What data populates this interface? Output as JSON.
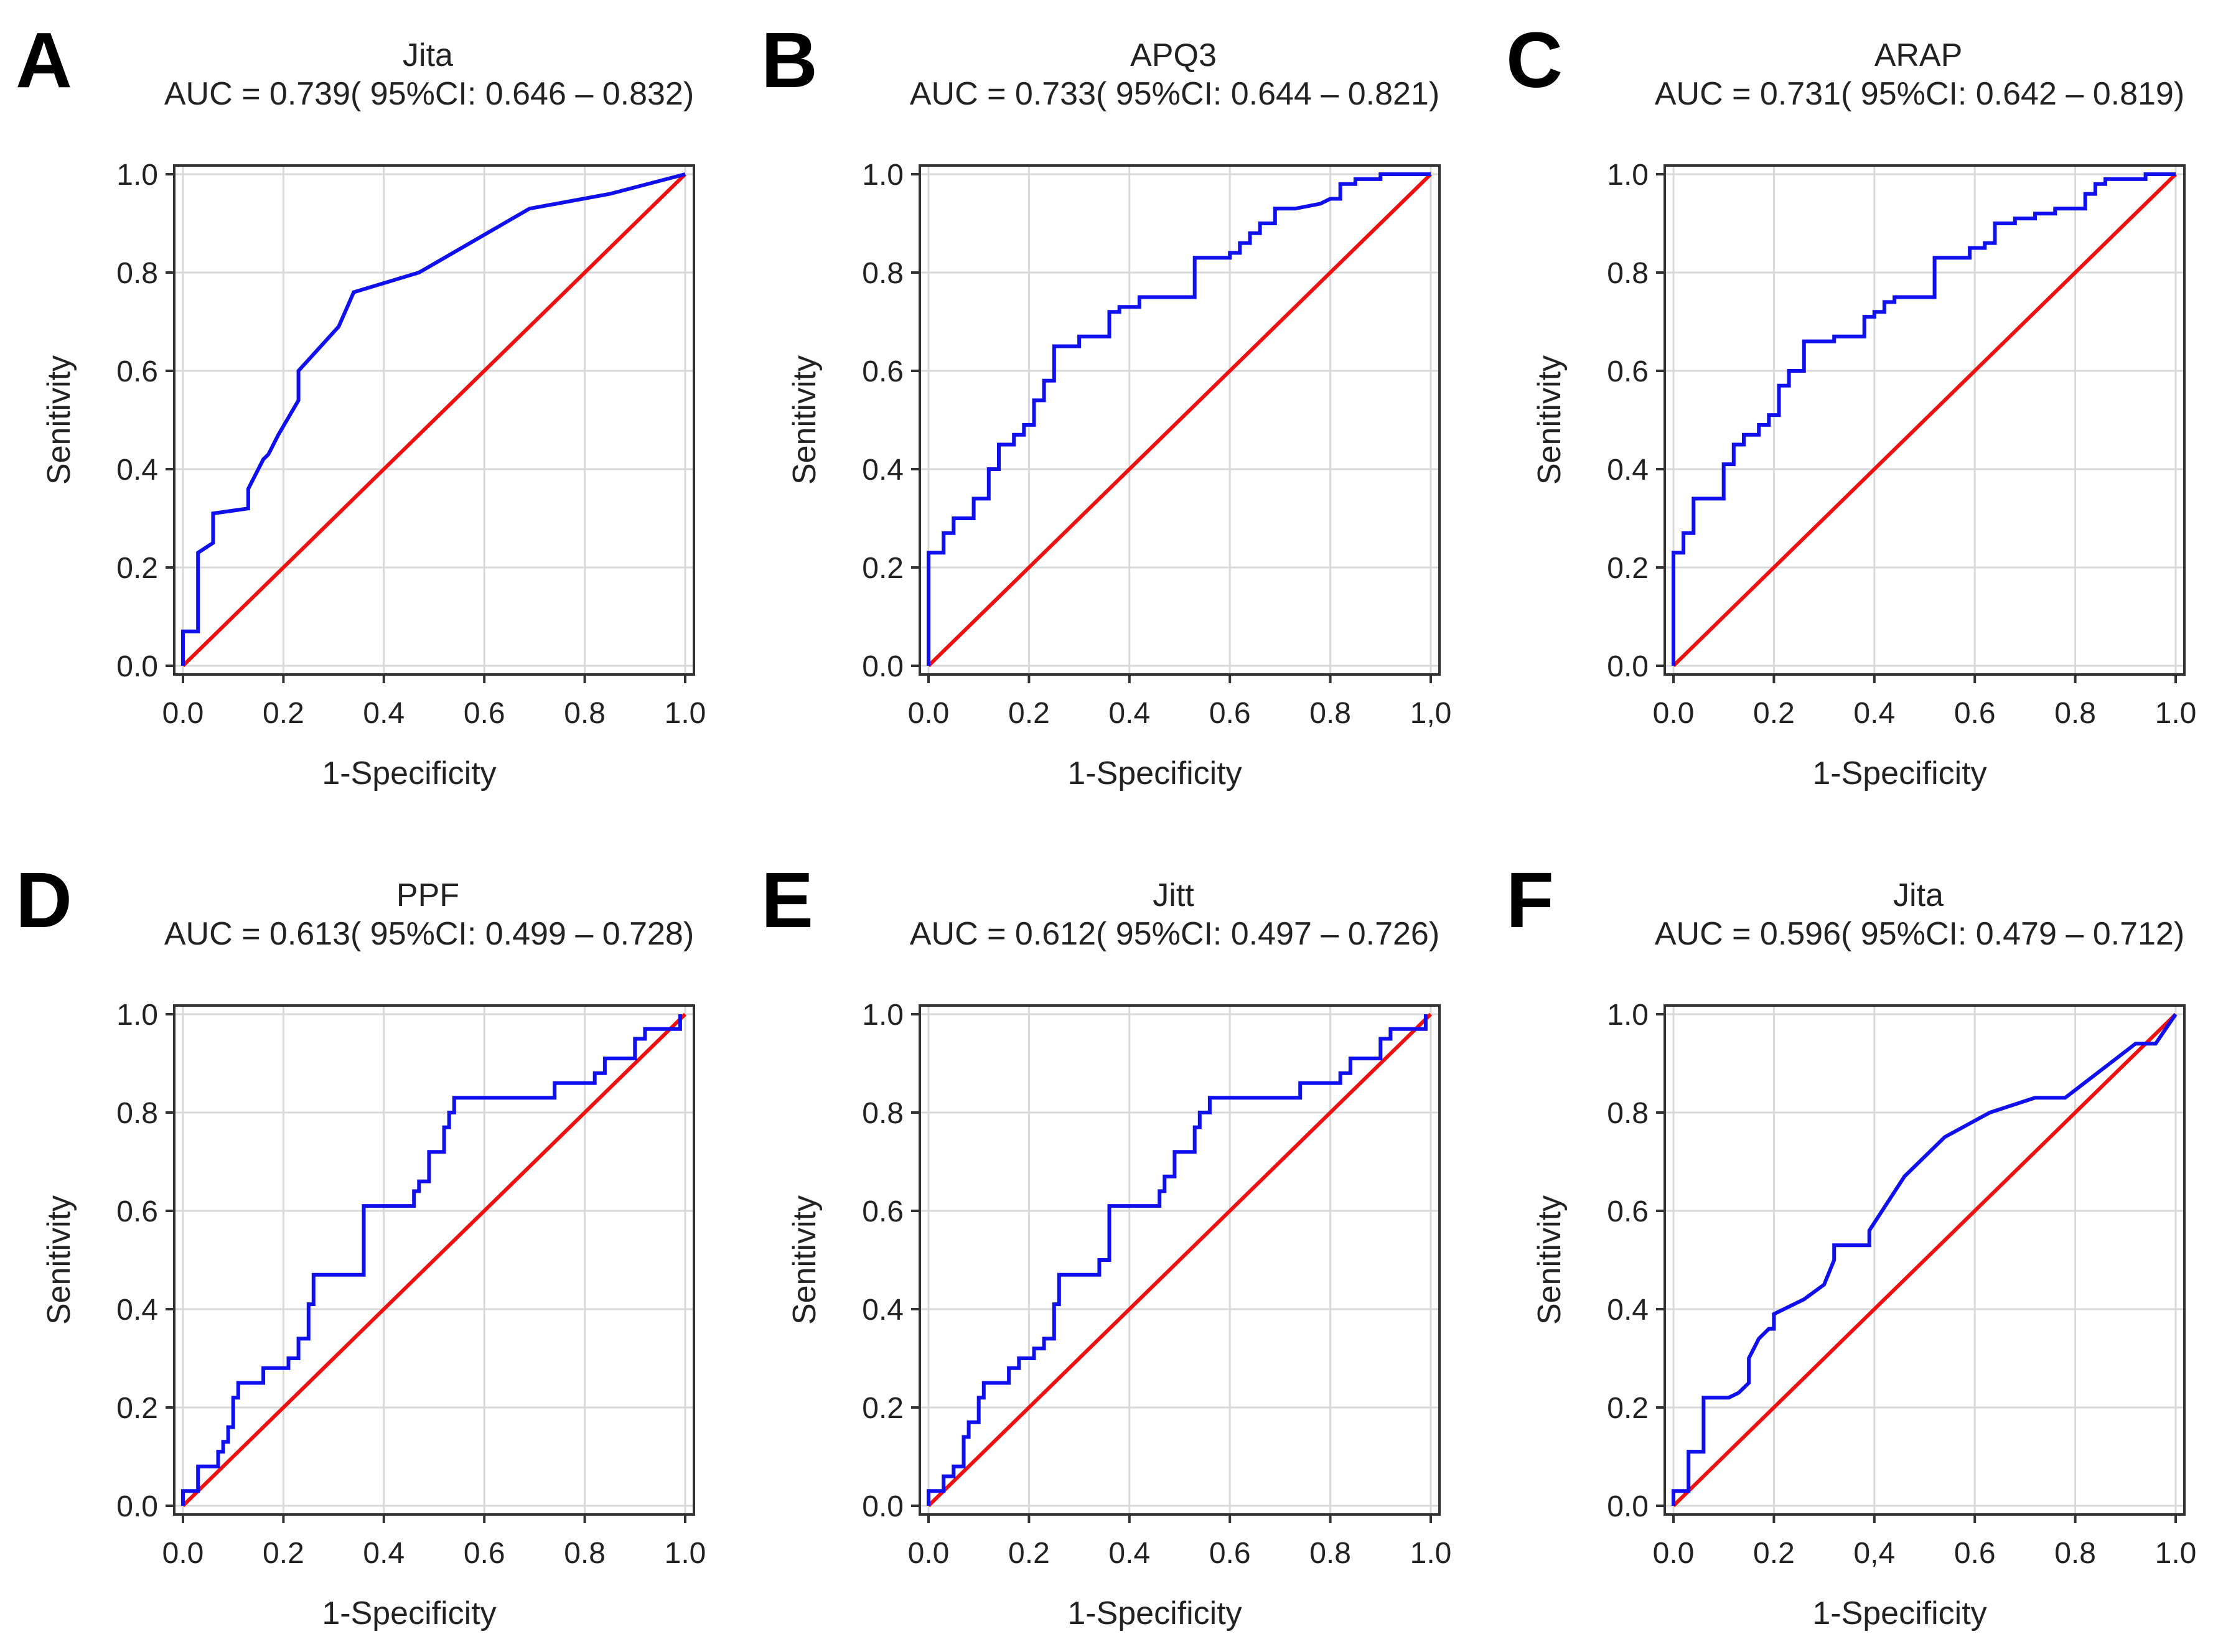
{
  "chart_data": [
    {
      "type": "line",
      "panel": "A",
      "title": "Jita",
      "subtitle": "AUC = 0.739( 95%CI: 0.646 – 0.832)",
      "xlabel": "1-Specificity",
      "ylabel": "Senitivity",
      "xlim": [
        0,
        1
      ],
      "ylim": [
        0,
        1
      ],
      "x_ticks": [
        "0.0",
        "0.2",
        "0.4",
        "0.6",
        "0.8",
        "1.0"
      ],
      "y_ticks": [
        "0.0",
        "0.2",
        "0.4",
        "0.6",
        "0.8",
        "1.0"
      ],
      "grid": true,
      "series": [
        {
          "name": "ROC",
          "color": "#1010ee",
          "x": [
            0,
            0,
            0.03,
            0.03,
            0.06,
            0.06,
            0.13,
            0.13,
            0.16,
            0.17,
            0.19,
            0.23,
            0.23,
            0.31,
            0.34,
            0.47,
            0.69,
            0.85,
            1.0
          ],
          "y": [
            0,
            0.07,
            0.07,
            0.23,
            0.25,
            0.31,
            0.32,
            0.36,
            0.42,
            0.43,
            0.47,
            0.54,
            0.6,
            0.69,
            0.76,
            0.8,
            0.93,
            0.96,
            1.0
          ]
        },
        {
          "name": "Reference",
          "color": "#ee1111",
          "x": [
            0,
            1
          ],
          "y": [
            0,
            1
          ]
        }
      ]
    },
    {
      "type": "line",
      "panel": "B",
      "title": "APQ3",
      "subtitle": "AUC = 0.733( 95%CI: 0.644 – 0.821)",
      "xlabel": "1-Specificity",
      "ylabel": "Senitivity",
      "xlim": [
        0,
        1
      ],
      "ylim": [
        0,
        1
      ],
      "x_ticks": [
        "0.0",
        "0.2",
        "0.4",
        "0.6",
        "0.8",
        "1,0"
      ],
      "y_ticks": [
        "0.0",
        "0.2",
        "0.4",
        "0.6",
        "0.8",
        "1.0"
      ],
      "grid": true,
      "series": [
        {
          "name": "ROC",
          "color": "#1010ee",
          "x": [
            0,
            0,
            0.03,
            0.03,
            0.05,
            0.05,
            0.09,
            0.09,
            0.12,
            0.12,
            0.14,
            0.14,
            0.17,
            0.17,
            0.19,
            0.19,
            0.21,
            0.21,
            0.23,
            0.23,
            0.25,
            0.25,
            0.3,
            0.3,
            0.36,
            0.36,
            0.38,
            0.38,
            0.42,
            0.42,
            0.53,
            0.53,
            0.6,
            0.6,
            0.62,
            0.62,
            0.64,
            0.64,
            0.66,
            0.66,
            0.69,
            0.69,
            0.73,
            0.73,
            0.78,
            0.8,
            0.82,
            0.82,
            0.85,
            0.85,
            0.9,
            0.9,
            1.0
          ],
          "y": [
            0,
            0.23,
            0.23,
            0.27,
            0.27,
            0.3,
            0.3,
            0.34,
            0.34,
            0.4,
            0.4,
            0.45,
            0.45,
            0.47,
            0.47,
            0.49,
            0.49,
            0.54,
            0.54,
            0.58,
            0.58,
            0.65,
            0.65,
            0.67,
            0.67,
            0.72,
            0.72,
            0.73,
            0.73,
            0.75,
            0.75,
            0.83,
            0.83,
            0.84,
            0.84,
            0.86,
            0.86,
            0.88,
            0.88,
            0.9,
            0.9,
            0.93,
            0.93,
            0.93,
            0.94,
            0.95,
            0.95,
            0.98,
            0.98,
            0.99,
            0.99,
            1.0,
            1.0
          ]
        },
        {
          "name": "Reference",
          "color": "#ee1111",
          "x": [
            0,
            1
          ],
          "y": [
            0,
            1
          ]
        }
      ]
    },
    {
      "type": "line",
      "panel": "C",
      "title": "ARAP",
      "subtitle": "AUC = 0.731( 95%CI: 0.642 – 0.819)",
      "xlabel": "1-Specificity",
      "ylabel": "Senitivity",
      "xlim": [
        0,
        1
      ],
      "ylim": [
        0,
        1
      ],
      "x_ticks": [
        "0.0",
        "0.2",
        "0.4",
        "0.6",
        "0.8",
        "1.0"
      ],
      "y_ticks": [
        "0.0",
        "0.2",
        "0.4",
        "0.6",
        "0.8",
        "1.0"
      ],
      "grid": true,
      "series": [
        {
          "name": "ROC",
          "color": "#1010ee",
          "x": [
            0,
            0,
            0.02,
            0.02,
            0.04,
            0.04,
            0.06,
            0.06,
            0.1,
            0.1,
            0.12,
            0.12,
            0.14,
            0.14,
            0.17,
            0.17,
            0.19,
            0.19,
            0.21,
            0.21,
            0.23,
            0.23,
            0.26,
            0.26,
            0.32,
            0.32,
            0.38,
            0.38,
            0.4,
            0.4,
            0.42,
            0.42,
            0.44,
            0.44,
            0.52,
            0.52,
            0.59,
            0.59,
            0.62,
            0.62,
            0.64,
            0.64,
            0.68,
            0.68,
            0.72,
            0.72,
            0.76,
            0.76,
            0.82,
            0.82,
            0.84,
            0.84,
            0.86,
            0.86,
            0.94,
            0.94,
            1.0
          ],
          "y": [
            0,
            0.23,
            0.23,
            0.27,
            0.27,
            0.34,
            0.34,
            0.34,
            0.34,
            0.41,
            0.41,
            0.45,
            0.45,
            0.47,
            0.47,
            0.49,
            0.49,
            0.51,
            0.51,
            0.57,
            0.57,
            0.6,
            0.6,
            0.66,
            0.66,
            0.67,
            0.67,
            0.71,
            0.71,
            0.72,
            0.72,
            0.74,
            0.74,
            0.75,
            0.75,
            0.83,
            0.83,
            0.85,
            0.85,
            0.86,
            0.86,
            0.9,
            0.9,
            0.91,
            0.91,
            0.92,
            0.92,
            0.93,
            0.93,
            0.96,
            0.96,
            0.98,
            0.98,
            0.99,
            0.99,
            1.0,
            1.0
          ]
        },
        {
          "name": "Reference",
          "color": "#ee1111",
          "x": [
            0,
            1
          ],
          "y": [
            0,
            1
          ]
        }
      ]
    },
    {
      "type": "line",
      "panel": "D",
      "title": "PPF",
      "subtitle": "AUC = 0.613( 95%CI: 0.499 – 0.728)",
      "xlabel": "1-Specificity",
      "ylabel": "Senitivity",
      "xlim": [
        0,
        1
      ],
      "ylim": [
        0,
        1
      ],
      "x_ticks": [
        "0.0",
        "0.2",
        "0.4",
        "0.6",
        "0.8",
        "1.0"
      ],
      "y_ticks": [
        "0.0",
        "0.2",
        "0.4",
        "0.6",
        "0.8",
        "1.0"
      ],
      "grid": true,
      "series": [
        {
          "name": "ROC",
          "color": "#1010ee",
          "x": [
            0,
            0,
            0.03,
            0.03,
            0.07,
            0.07,
            0.08,
            0.08,
            0.09,
            0.09,
            0.1,
            0.1,
            0.11,
            0.11,
            0.12,
            0.12,
            0.16,
            0.16,
            0.21,
            0.21,
            0.23,
            0.23,
            0.25,
            0.25,
            0.26,
            0.26,
            0.36,
            0.36,
            0.46,
            0.46,
            0.47,
            0.47,
            0.49,
            0.49,
            0.52,
            0.52,
            0.53,
            0.53,
            0.54,
            0.54,
            0.56,
            0.56,
            0.74,
            0.74,
            0.82,
            0.82,
            0.84,
            0.84,
            0.9,
            0.9,
            0.92,
            0.92,
            0.99,
            0.99
          ],
          "y": [
            0,
            0.03,
            0.03,
            0.08,
            0.08,
            0.11,
            0.11,
            0.13,
            0.13,
            0.16,
            0.16,
            0.22,
            0.22,
            0.25,
            0.25,
            0.25,
            0.25,
            0.28,
            0.28,
            0.3,
            0.3,
            0.34,
            0.34,
            0.41,
            0.41,
            0.47,
            0.47,
            0.61,
            0.61,
            0.64,
            0.64,
            0.66,
            0.66,
            0.72,
            0.72,
            0.77,
            0.77,
            0.8,
            0.8,
            0.83,
            0.83,
            0.83,
            0.83,
            0.86,
            0.86,
            0.88,
            0.88,
            0.91,
            0.91,
            0.95,
            0.95,
            0.97,
            0.97,
            1.0
          ]
        },
        {
          "name": "Reference",
          "color": "#ee1111",
          "x": [
            0,
            1
          ],
          "y": [
            0,
            1
          ]
        }
      ]
    },
    {
      "type": "line",
      "panel": "E",
      "title": "Jitt",
      "subtitle": "AUC = 0.612( 95%CI: 0.497 – 0.726)",
      "xlabel": "1-Specificity",
      "ylabel": "Senitivity",
      "xlim": [
        0,
        1
      ],
      "ylim": [
        0,
        1
      ],
      "x_ticks": [
        "0.0",
        "0.2",
        "0.4",
        "0.6",
        "0.8",
        "1.0"
      ],
      "y_ticks": [
        "0.0",
        "0.2",
        "0.4",
        "0.6",
        "0.8",
        "1.0"
      ],
      "grid": true,
      "series": [
        {
          "name": "ROC",
          "color": "#1010ee",
          "x": [
            0,
            0,
            0.03,
            0.03,
            0.05,
            0.05,
            0.07,
            0.07,
            0.08,
            0.08,
            0.1,
            0.1,
            0.11,
            0.11,
            0.16,
            0.16,
            0.18,
            0.18,
            0.21,
            0.21,
            0.23,
            0.23,
            0.25,
            0.25,
            0.26,
            0.26,
            0.34,
            0.34,
            0.36,
            0.36,
            0.46,
            0.46,
            0.47,
            0.47,
            0.49,
            0.49,
            0.53,
            0.53,
            0.54,
            0.54,
            0.56,
            0.56,
            0.74,
            0.74,
            0.82,
            0.82,
            0.84,
            0.84,
            0.9,
            0.9,
            0.92,
            0.92,
            0.99,
            0.99
          ],
          "y": [
            0,
            0.03,
            0.03,
            0.06,
            0.06,
            0.08,
            0.08,
            0.14,
            0.14,
            0.17,
            0.17,
            0.22,
            0.22,
            0.25,
            0.25,
            0.28,
            0.28,
            0.3,
            0.3,
            0.32,
            0.32,
            0.34,
            0.34,
            0.41,
            0.41,
            0.47,
            0.47,
            0.5,
            0.5,
            0.61,
            0.61,
            0.64,
            0.64,
            0.67,
            0.67,
            0.72,
            0.72,
            0.77,
            0.77,
            0.8,
            0.8,
            0.83,
            0.83,
            0.86,
            0.86,
            0.88,
            0.88,
            0.91,
            0.91,
            0.95,
            0.95,
            0.97,
            0.97,
            1.0
          ]
        },
        {
          "name": "Reference",
          "color": "#ee1111",
          "x": [
            0,
            1
          ],
          "y": [
            0,
            1
          ]
        }
      ]
    },
    {
      "type": "line",
      "panel": "F",
      "title": "Jita",
      "subtitle": "AUC = 0.596( 95%CI: 0.479 – 0.712)",
      "xlabel": "1-Specificity",
      "ylabel": "Senitivity",
      "xlim": [
        0,
        1
      ],
      "ylim": [
        0,
        1
      ],
      "x_ticks": [
        "0.0",
        "0.2",
        "0,4",
        "0.6",
        "0.8",
        "1.0"
      ],
      "y_ticks": [
        "0.0",
        "0.2",
        "0.4",
        "0.6",
        "0.8",
        "1.0"
      ],
      "grid": true,
      "series": [
        {
          "name": "ROC",
          "color": "#1010ee",
          "x": [
            0,
            0,
            0.03,
            0.03,
            0.06,
            0.06,
            0.11,
            0.13,
            0.15,
            0.15,
            0.17,
            0.19,
            0.2,
            0.2,
            0.24,
            0.26,
            0.3,
            0.32,
            0.32,
            0.39,
            0.39,
            0.46,
            0.54,
            0.63,
            0.72,
            0.78,
            0.92,
            0.96,
            1.0
          ],
          "y": [
            0,
            0.03,
            0.03,
            0.11,
            0.11,
            0.22,
            0.22,
            0.23,
            0.25,
            0.3,
            0.34,
            0.36,
            0.36,
            0.39,
            0.41,
            0.42,
            0.45,
            0.5,
            0.53,
            0.53,
            0.56,
            0.67,
            0.75,
            0.8,
            0.83,
            0.83,
            0.94,
            0.94,
            1.0
          ]
        },
        {
          "name": "Reference",
          "color": "#ee1111",
          "x": [
            0,
            1
          ],
          "y": [
            0,
            1
          ]
        }
      ]
    }
  ]
}
